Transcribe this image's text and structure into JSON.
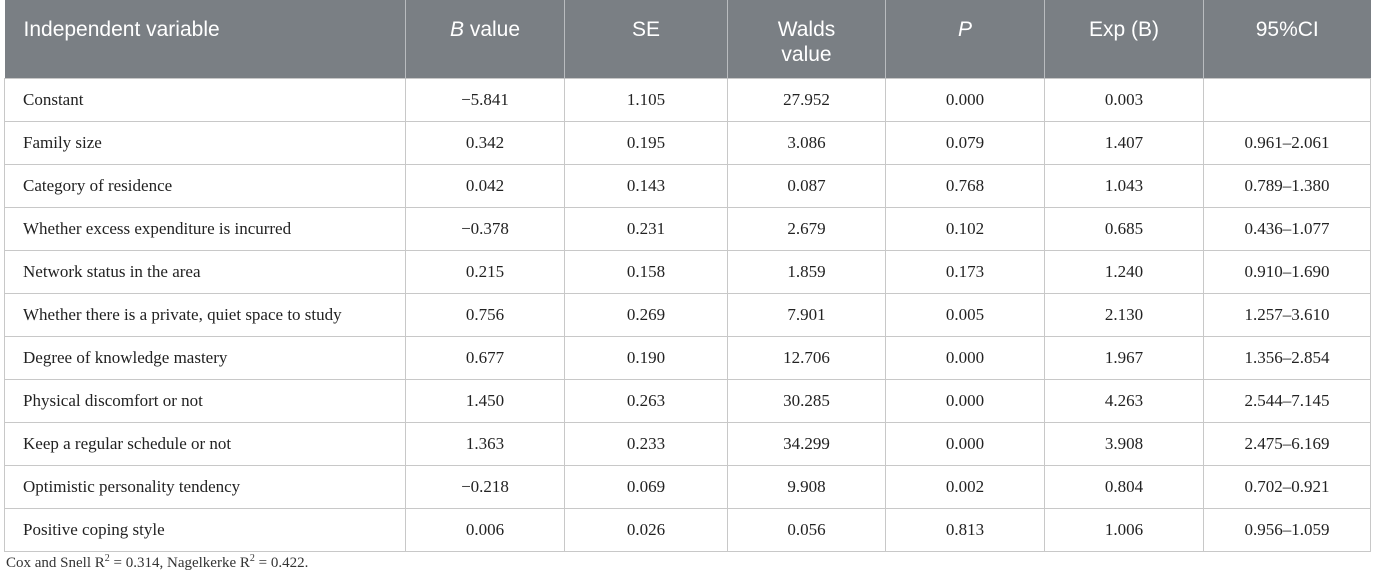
{
  "table": {
    "headers": {
      "independent_variable": "Independent variable",
      "b_value_italic": "B",
      "b_value_rest": " value",
      "se": "SE",
      "walds_line1": "Walds",
      "walds_line2": "value",
      "p": "P",
      "exp_b": "Exp (B)",
      "ci": "95%CI"
    },
    "rows": [
      {
        "variable": "Constant",
        "b": "−5.841",
        "se": "1.105",
        "walds": "27.952",
        "p": "0.000",
        "exp_b": "0.003",
        "ci": ""
      },
      {
        "variable": "Family size",
        "b": "0.342",
        "se": "0.195",
        "walds": "3.086",
        "p": "0.079",
        "exp_b": "1.407",
        "ci": "0.961–2.061"
      },
      {
        "variable": "Category of residence",
        "b": "0.042",
        "se": "0.143",
        "walds": "0.087",
        "p": "0.768",
        "exp_b": "1.043",
        "ci": "0.789–1.380"
      },
      {
        "variable": "Whether excess expenditure is incurred",
        "b": "−0.378",
        "se": "0.231",
        "walds": "2.679",
        "p": "0.102",
        "exp_b": "0.685",
        "ci": "0.436–1.077"
      },
      {
        "variable": "Network status in the area",
        "b": "0.215",
        "se": "0.158",
        "walds": "1.859",
        "p": "0.173",
        "exp_b": "1.240",
        "ci": "0.910–1.690"
      },
      {
        "variable": "Whether there is a private, quiet space to study",
        "b": "0.756",
        "se": "0.269",
        "walds": "7.901",
        "p": "0.005",
        "exp_b": "2.130",
        "ci": "1.257–3.610"
      },
      {
        "variable": "Degree of knowledge mastery",
        "b": "0.677",
        "se": "0.190",
        "walds": "12.706",
        "p": "0.000",
        "exp_b": "1.967",
        "ci": "1.356–2.854"
      },
      {
        "variable": "Physical discomfort or not",
        "b": "1.450",
        "se": "0.263",
        "walds": "30.285",
        "p": "0.000",
        "exp_b": "4.263",
        "ci": "2.544–7.145"
      },
      {
        "variable": "Keep a regular schedule or not",
        "b": "1.363",
        "se": "0.233",
        "walds": "34.299",
        "p": "0.000",
        "exp_b": "3.908",
        "ci": "2.475–6.169"
      },
      {
        "variable": "Optimistic personality tendency",
        "b": "−0.218",
        "se": "0.069",
        "walds": "9.908",
        "p": "0.002",
        "exp_b": "0.804",
        "ci": "0.702–0.921"
      },
      {
        "variable": "Positive coping style",
        "b": "0.006",
        "se": "0.026",
        "walds": "0.056",
        "p": "0.813",
        "exp_b": "1.006",
        "ci": "0.956–1.059"
      }
    ]
  },
  "footnote": {
    "cox_label": "Cox and Snell R",
    "cox_sup": "2",
    "cox_value": " = 0.314, ",
    "nagel_label": "Nagelkerke R",
    "nagel_sup": "2",
    "nagel_value": " = 0.422."
  }
}
